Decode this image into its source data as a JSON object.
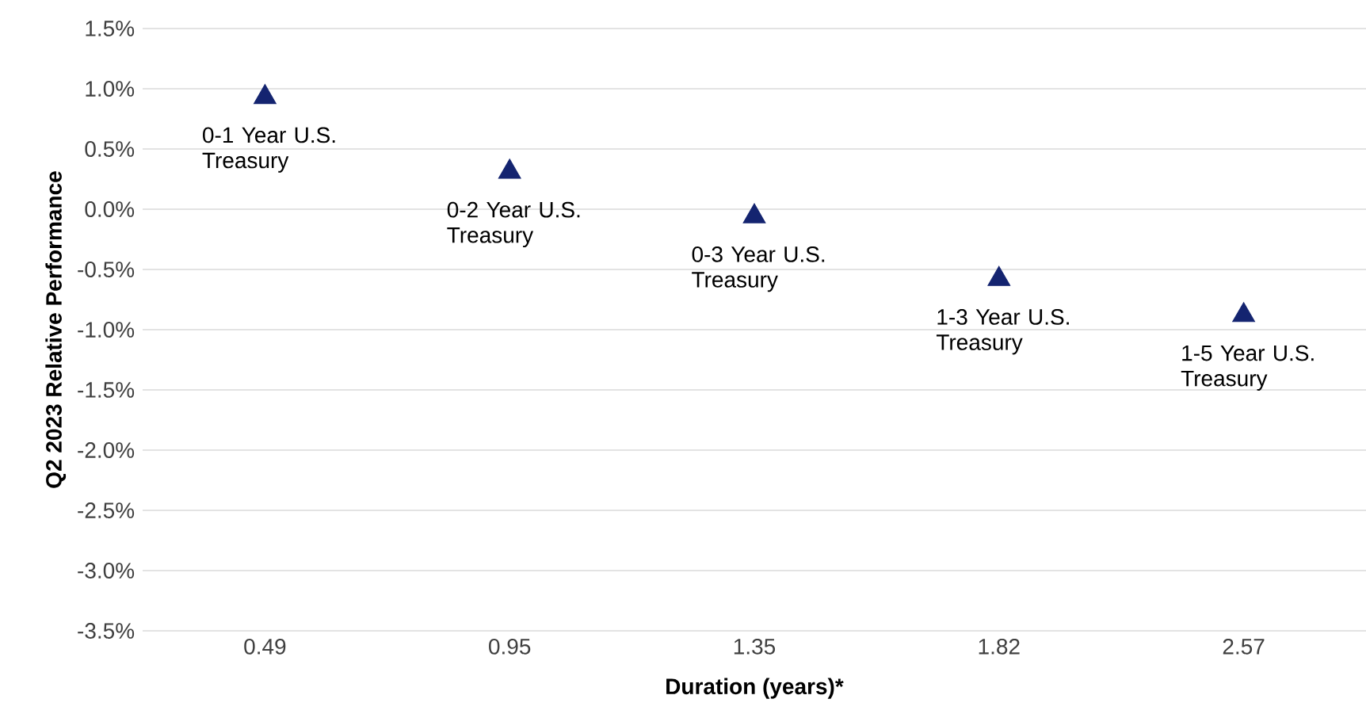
{
  "chart_data": {
    "type": "scatter",
    "xlabel": "Duration (years)*",
    "ylabel": "Q2 2023 Relative Performance",
    "categories": [
      "0.49",
      "0.95",
      "1.35",
      "1.82",
      "2.57"
    ],
    "series": [
      {
        "color": "#142470",
        "values": [
          0.93,
          0.31,
          -0.06,
          -0.58,
          -0.88
        ]
      }
    ],
    "marker": "triangle",
    "ylim": [
      -3.5,
      1.5
    ],
    "yticks": [
      {
        "value": -3.5,
        "label": "-3.5%"
      },
      {
        "value": -3.0,
        "label": "-3.0%"
      },
      {
        "value": -2.5,
        "label": "-2.5%"
      },
      {
        "value": -2.0,
        "label": "-2.0%"
      },
      {
        "value": -1.5,
        "label": "-1.5%"
      },
      {
        "value": -1.0,
        "label": "-1.0%"
      },
      {
        "value": -0.5,
        "label": "-0.5%"
      },
      {
        "value": 0.0,
        "label": "0.0%"
      },
      {
        "value": 0.5,
        "label": "0.5%"
      },
      {
        "value": 1.0,
        "label": "1.0%"
      },
      {
        "value": 1.5,
        "label": "1.5%"
      }
    ],
    "grid": "y",
    "annotations": [
      {
        "text": "0-1 Year U.S. Treasury",
        "x": "0.49",
        "y": 0.93
      },
      {
        "text": "0-2 Year U.S. Treasury",
        "x": "0.95",
        "y": 0.31
      },
      {
        "text": "0-3 Year U.S. Treasury",
        "x": "1.35",
        "y": -0.06
      },
      {
        "text": "1-3 Year U.S. Treasury",
        "x": "1.82",
        "y": -0.58
      },
      {
        "text": "1-5 Year U.S. Treasury",
        "x": "2.57",
        "y": -0.88
      }
    ]
  }
}
